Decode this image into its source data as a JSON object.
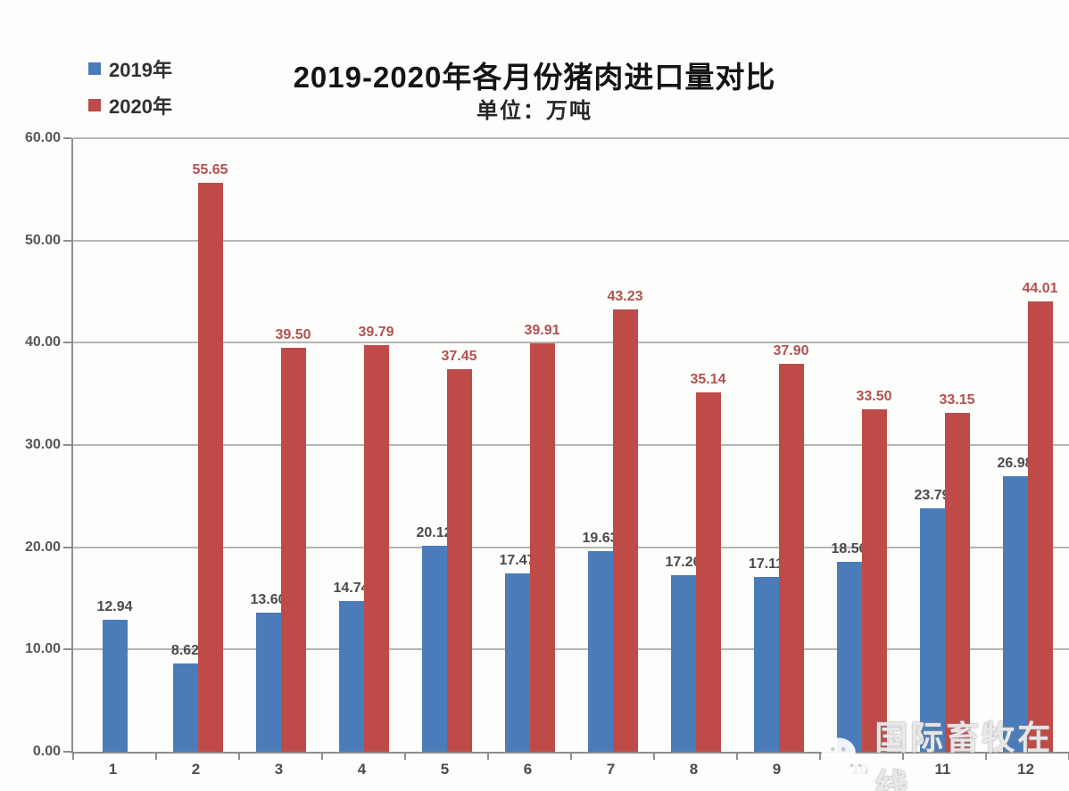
{
  "title": "2019-2020年各月份猪肉进口量对比",
  "subtitle": "单位：万吨",
  "legend": {
    "position": "top-left",
    "items": [
      {
        "label": "2019年",
        "color": "#4b7cba"
      },
      {
        "label": "2020年",
        "color": "#bf4b48"
      }
    ]
  },
  "watermark": {
    "icon": "wechat-icon",
    "text": "国际畜牧在线"
  },
  "chart_data": {
    "type": "bar",
    "title": "2019-2020年各月份猪肉进口量对比",
    "subtitle": "单位：万吨",
    "xlabel": "",
    "ylabel": "",
    "ylim": [
      0,
      60
    ],
    "ytick_step": 10,
    "ytick_labels": [
      "60.00",
      "50.00",
      "40.00",
      "30.00",
      "20.00",
      "10.00",
      "0.00"
    ],
    "grid": true,
    "legend_position": "top-left",
    "categories": [
      "1",
      "2",
      "3",
      "4",
      "5",
      "6",
      "7",
      "8",
      "9",
      "10",
      "11",
      "12"
    ],
    "series": [
      {
        "name": "2019年",
        "color": "#4b7cba",
        "label_color": "#4a4a4a",
        "values": [
          12.94,
          8.62,
          13.6,
          14.74,
          20.12,
          17.47,
          19.63,
          17.26,
          17.11,
          18.56,
          23.79,
          26.98
        ]
      },
      {
        "name": "2020年",
        "color": "#bf4b48",
        "label_color": "#b2524e",
        "values": [
          null,
          55.65,
          39.5,
          39.79,
          37.45,
          39.91,
          43.23,
          35.14,
          37.9,
          33.5,
          33.15,
          44.01
        ]
      }
    ]
  }
}
